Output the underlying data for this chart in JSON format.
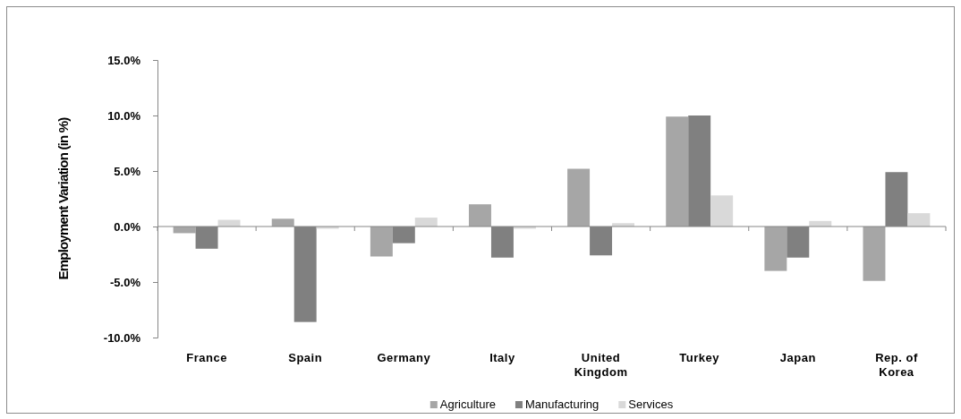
{
  "chart_data": {
    "type": "bar",
    "ylabel": "Employment Variation (in %)",
    "categories": [
      "France",
      "Spain",
      "Germany",
      "Italy",
      "United Kingdom",
      "Turkey",
      "Japan",
      "Rep. of Korea"
    ],
    "series": [
      {
        "name": "Agriculture",
        "color": "#a6a6a6",
        "values": [
          -0.6,
          0.7,
          -2.7,
          2.0,
          5.2,
          9.9,
          -4.0,
          -4.9
        ]
      },
      {
        "name": "Manufacturing",
        "color": "#808080",
        "values": [
          -2.0,
          -8.6,
          -1.5,
          -2.8,
          -2.6,
          10.0,
          -2.8,
          4.9
        ]
      },
      {
        "name": "Services",
        "color": "#d9d9d9",
        "values": [
          0.6,
          -0.2,
          0.8,
          -0.2,
          0.3,
          2.8,
          0.5,
          1.2
        ]
      }
    ],
    "ylim": [
      -10,
      15
    ],
    "yticks": [
      {
        "value": -10,
        "label": "-10.0%"
      },
      {
        "value": -5,
        "label": "-5.0%"
      },
      {
        "value": 0,
        "label": "0.0%"
      },
      {
        "value": 5,
        "label": "5.0%"
      },
      {
        "value": 10,
        "label": "10.0%"
      },
      {
        "value": 15,
        "label": "15.0%"
      }
    ],
    "legend": "bottom"
  }
}
